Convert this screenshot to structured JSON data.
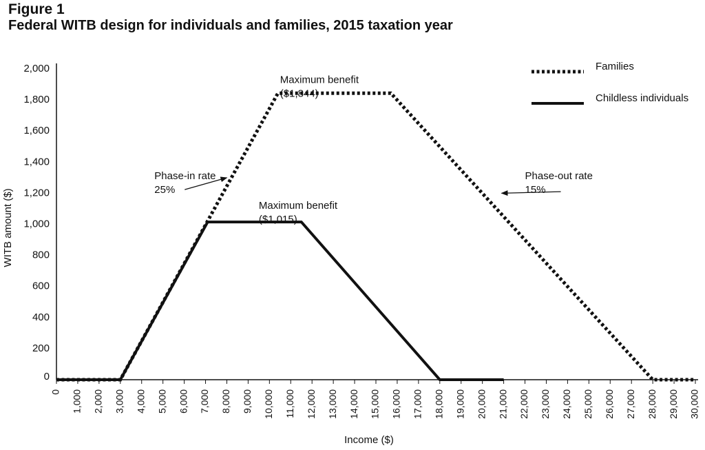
{
  "figure_label": "Figure 1",
  "title": "Federal WITB design for individuals and families, 2015 taxation year",
  "chart_data": {
    "type": "line",
    "xlabel": "Income ($)",
    "ylabel": "WITB amount ($)",
    "xlim": [
      0,
      30000
    ],
    "ylim": [
      0,
      2000
    ],
    "x_ticks": [
      {
        "value": 0,
        "label": "0"
      },
      {
        "value": 1000,
        "label": "1,000"
      },
      {
        "value": 2000,
        "label": "2,000"
      },
      {
        "value": 3000,
        "label": "3,000"
      },
      {
        "value": 4000,
        "label": "4,000"
      },
      {
        "value": 5000,
        "label": "5,000"
      },
      {
        "value": 6000,
        "label": "6,000"
      },
      {
        "value": 7000,
        "label": "7,000"
      },
      {
        "value": 8000,
        "label": "8,000"
      },
      {
        "value": 9000,
        "label": "9,000"
      },
      {
        "value": 10000,
        "label": "10,000"
      },
      {
        "value": 11000,
        "label": "11,000"
      },
      {
        "value": 12000,
        "label": "12,000"
      },
      {
        "value": 13000,
        "label": "13,000"
      },
      {
        "value": 14000,
        "label": "14,000"
      },
      {
        "value": 15000,
        "label": "15,000"
      },
      {
        "value": 16000,
        "label": "16,000"
      },
      {
        "value": 17000,
        "label": "17,000"
      },
      {
        "value": 18000,
        "label": "18,000"
      },
      {
        "value": 19000,
        "label": "19,000"
      },
      {
        "value": 20000,
        "label": "20,000"
      },
      {
        "value": 21000,
        "label": "21,000"
      },
      {
        "value": 22000,
        "label": "22,000"
      },
      {
        "value": 23000,
        "label": "23,000"
      },
      {
        "value": 24000,
        "label": "24,000"
      },
      {
        "value": 25000,
        "label": "25,000"
      },
      {
        "value": 26000,
        "label": "26,000"
      },
      {
        "value": 27000,
        "label": "27,000"
      },
      {
        "value": 28000,
        "label": "28,000"
      },
      {
        "value": 29000,
        "label": "29,000"
      },
      {
        "value": 30000,
        "label": "30,000"
      }
    ],
    "y_ticks": [
      {
        "value": 0,
        "label": "0"
      },
      {
        "value": 200,
        "label": "200"
      },
      {
        "value": 400,
        "label": "400"
      },
      {
        "value": 600,
        "label": "600"
      },
      {
        "value": 800,
        "label": "800"
      },
      {
        "value": 1000,
        "label": "1,000"
      },
      {
        "value": 1200,
        "label": "1,200"
      },
      {
        "value": 1400,
        "label": "1,400"
      },
      {
        "value": 1600,
        "label": "1,600"
      },
      {
        "value": 1800,
        "label": "1,800"
      },
      {
        "value": 2000,
        "label": "2,000"
      }
    ],
    "series": [
      {
        "name": "Families",
        "style": "dotted",
        "color": "#111111",
        "x": [
          0,
          3000,
          10400,
          15700,
          28000,
          30000
        ],
        "y": [
          0,
          0,
          1844,
          1844,
          0,
          0
        ]
      },
      {
        "name": "Childless individuals",
        "style": "solid",
        "color": "#111111",
        "x": [
          0,
          3000,
          7100,
          11500,
          18000,
          21000
        ],
        "y": [
          0,
          0,
          1015,
          1015,
          0,
          0
        ]
      }
    ],
    "legend_position": "top-right",
    "annotations": [
      {
        "lines": [
          "Maximum benefit",
          "($1,844)"
        ],
        "x": 10500,
        "y": 1910
      },
      {
        "lines": [
          "Maximum benefit",
          "($1,015)"
        ],
        "x": 9500,
        "y": 1100
      },
      {
        "lines": [
          "Phase-in rate",
          "25%"
        ],
        "x": 4600,
        "y": 1290,
        "arrow_to": [
          8000,
          1300
        ]
      },
      {
        "lines": [
          "Phase-out rate",
          "15%"
        ],
        "x": 22000,
        "y": 1290,
        "arrow_to": [
          20900,
          1200
        ]
      }
    ],
    "grid": false
  }
}
